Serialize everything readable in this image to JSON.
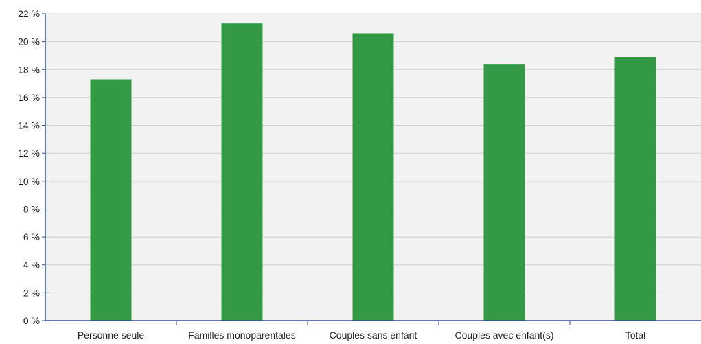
{
  "chart_data": {
    "type": "bar",
    "categories": [
      "Personne seule",
      "Familles monoparentales",
      "Couples sans enfant",
      "Couples avec enfant(s)",
      "Total"
    ],
    "values": [
      17.3,
      21.3,
      20.6,
      18.4,
      18.9
    ],
    "ylim": [
      0,
      22
    ],
    "y_ticks": [
      "0 %",
      "2 %",
      "4 %",
      "6 %",
      "8 %",
      "10 %",
      "12 %",
      "14 %",
      "16 %",
      "18 %",
      "20 %",
      "22 %"
    ],
    "y_tick_values": [
      0,
      2,
      4,
      6,
      8,
      10,
      12,
      14,
      16,
      18,
      20,
      22
    ],
    "grid": true,
    "colors": {
      "bar": "#339944",
      "plot_bg": "#f2f2f2",
      "grid": "#d0d0d0",
      "axis": "#2f4f8f"
    }
  }
}
